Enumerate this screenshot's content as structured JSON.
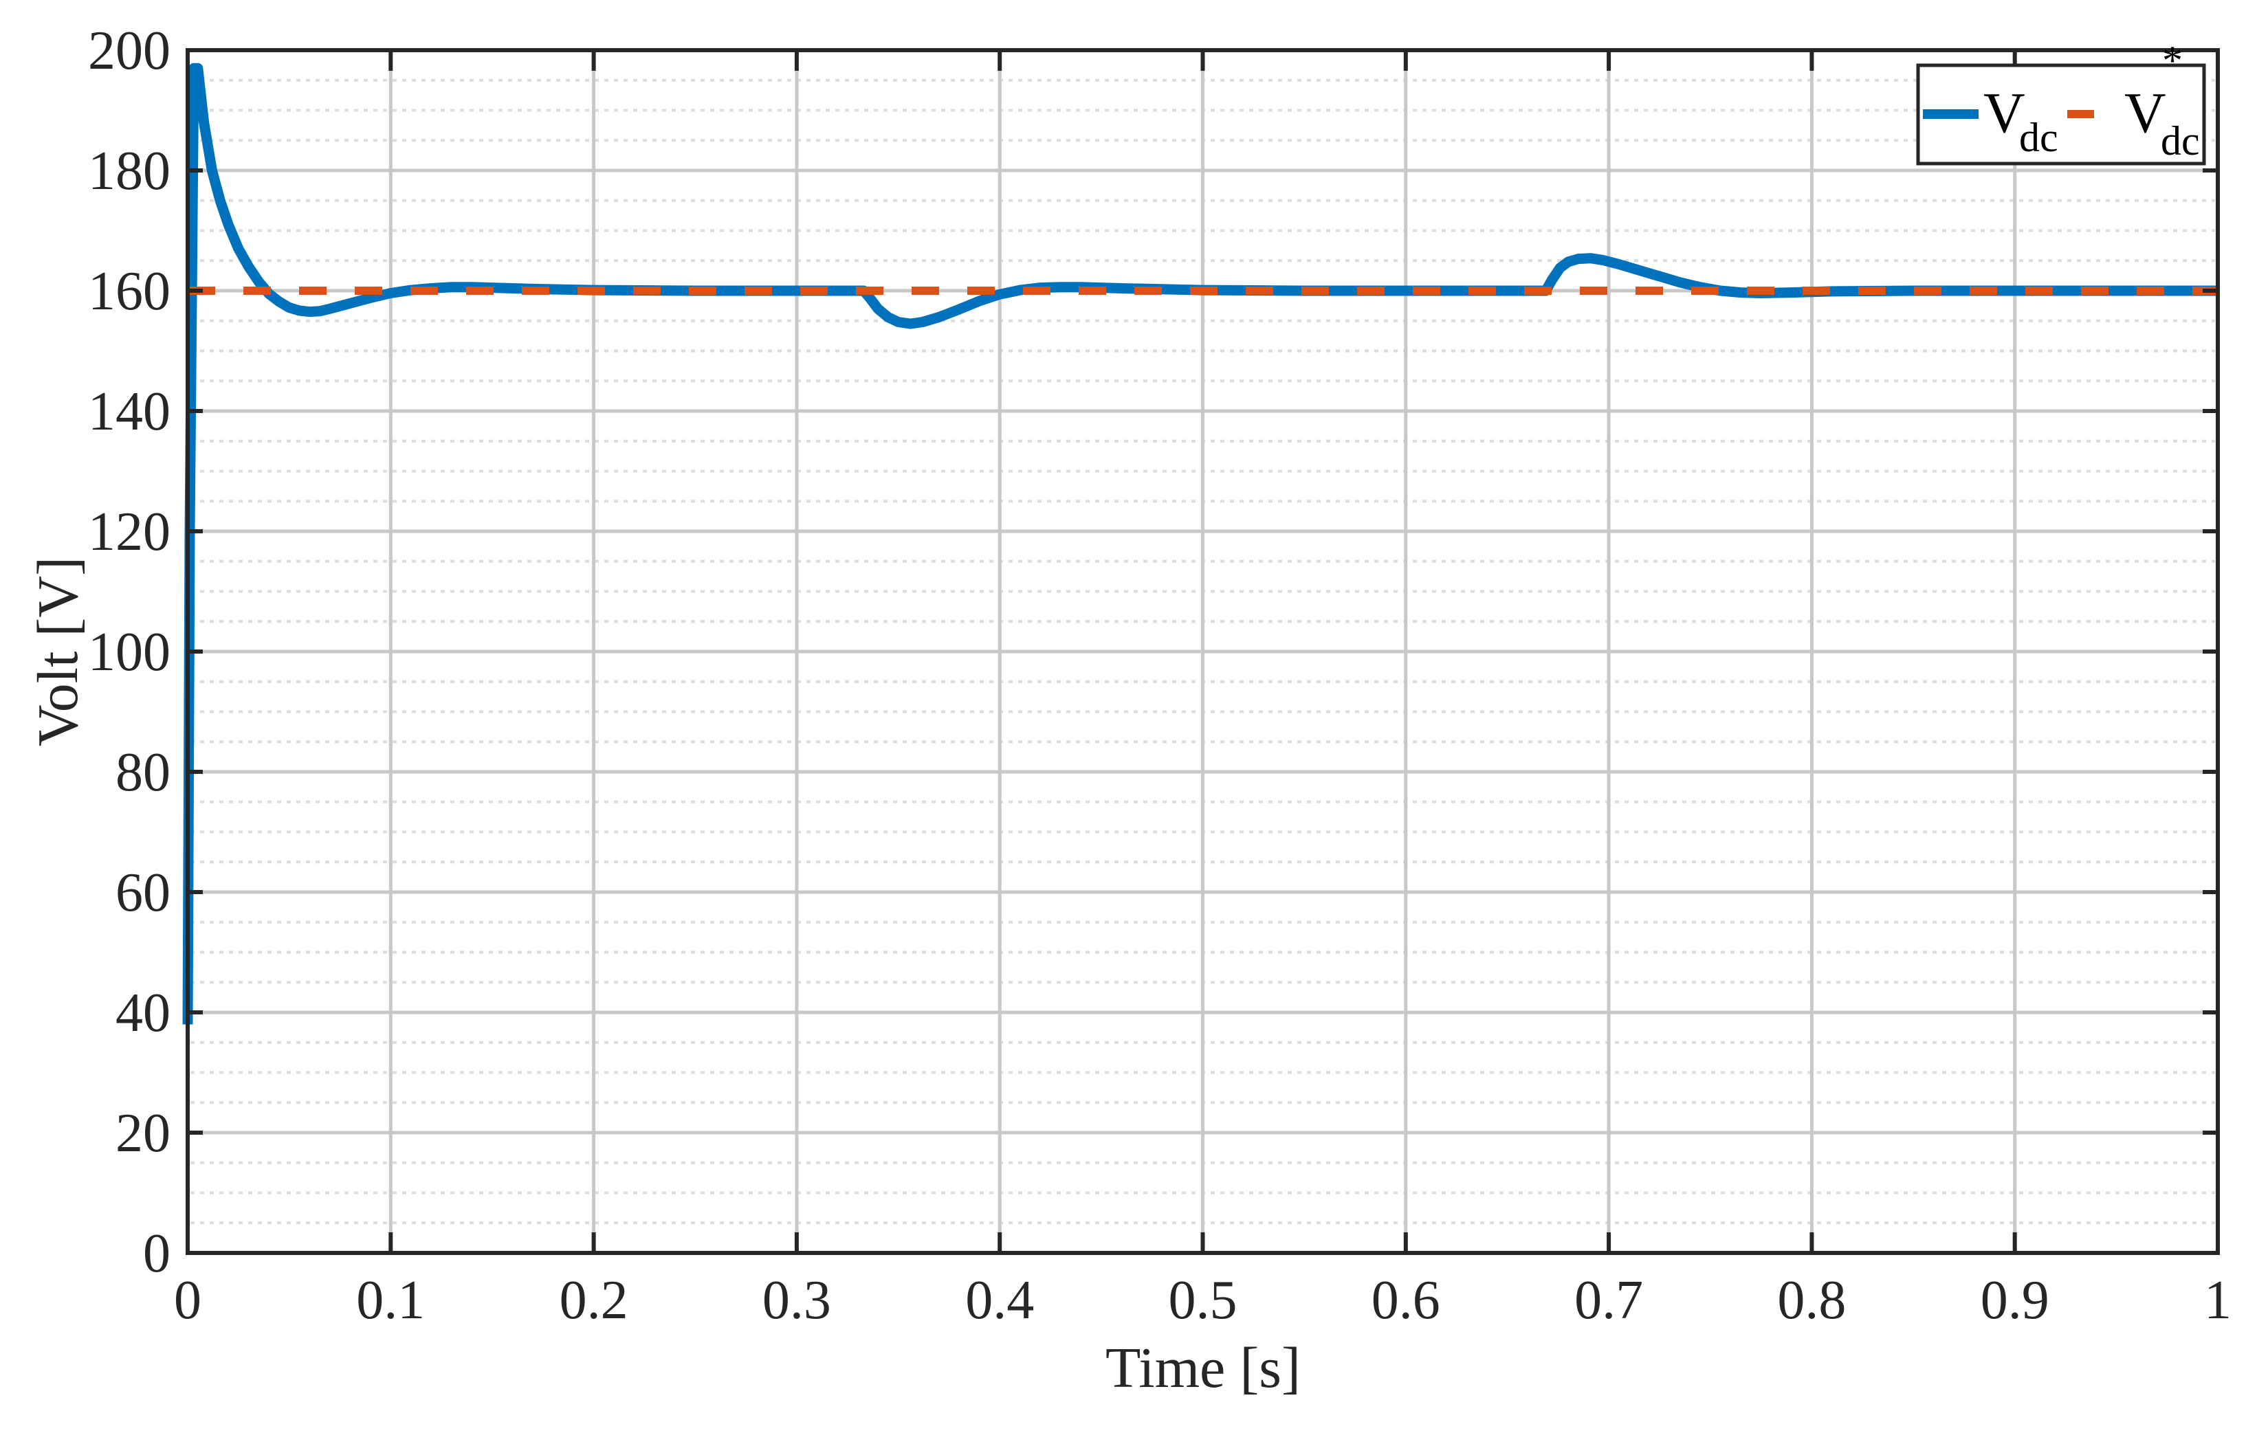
{
  "chart_data": {
    "type": "line",
    "title": "",
    "xlabel": "Time [s]",
    "ylabel": "Volt [V]",
    "xlim": [
      0,
      1
    ],
    "ylim": [
      0,
      200
    ],
    "xticks": [
      0,
      0.1,
      0.2,
      0.3,
      0.4,
      0.5,
      0.6,
      0.7,
      0.8,
      0.9,
      1
    ],
    "xtick_labels": [
      "0",
      "0.1",
      "0.2",
      "0.3",
      "0.4",
      "0.5",
      "0.6",
      "0.7",
      "0.8",
      "0.9",
      "1"
    ],
    "yticks": [
      0,
      20,
      40,
      60,
      80,
      100,
      120,
      140,
      160,
      180,
      200
    ],
    "ytick_labels": [
      "0",
      "20",
      "40",
      "60",
      "80",
      "100",
      "120",
      "140",
      "160",
      "180",
      "200"
    ],
    "minor_y_step": 5,
    "grid": true,
    "legend_position": "top-right",
    "series": [
      {
        "name": "V_dc",
        "legend_main": "V",
        "legend_sub": "dc",
        "legend_sup": "",
        "color": "#0072BD",
        "style": "solid",
        "x": [
          0,
          0.001,
          0.003,
          0.005,
          0.008,
          0.012,
          0.016,
          0.02,
          0.025,
          0.03,
          0.035,
          0.04,
          0.045,
          0.05,
          0.055,
          0.06,
          0.065,
          0.07,
          0.08,
          0.09,
          0.1,
          0.11,
          0.12,
          0.13,
          0.14,
          0.15,
          0.17,
          0.2,
          0.25,
          0.3,
          0.333,
          0.336,
          0.34,
          0.345,
          0.35,
          0.356,
          0.362,
          0.37,
          0.38,
          0.39,
          0.4,
          0.41,
          0.42,
          0.43,
          0.44,
          0.46,
          0.5,
          0.55,
          0.6,
          0.65,
          0.669,
          0.672,
          0.676,
          0.68,
          0.685,
          0.691,
          0.697,
          0.705,
          0.715,
          0.725,
          0.735,
          0.745,
          0.755,
          0.765,
          0.775,
          0.79,
          0.81,
          0.85,
          0.9,
          0.95,
          1.0
        ],
        "y": [
          38,
          120,
          197,
          197,
          188,
          180,
          175,
          171,
          167,
          164,
          161.5,
          159.5,
          158.2,
          157.2,
          156.7,
          156.5,
          156.6,
          157,
          157.9,
          158.8,
          159.6,
          160.1,
          160.4,
          160.6,
          160.6,
          160.5,
          160.3,
          160.1,
          160,
          160,
          160,
          158.8,
          157,
          155.6,
          154.8,
          154.5,
          154.8,
          155.6,
          156.9,
          158.3,
          159.4,
          160.1,
          160.5,
          160.6,
          160.6,
          160.4,
          160.1,
          160,
          160,
          160,
          160,
          161.8,
          163.8,
          164.8,
          165.3,
          165.4,
          165.1,
          164.4,
          163.4,
          162.4,
          161.4,
          160.6,
          160,
          159.7,
          159.6,
          159.7,
          159.9,
          160,
          160,
          160,
          160
        ]
      },
      {
        "name": "V_dc*",
        "legend_main": "V",
        "legend_sub": "dc",
        "legend_sup": "*",
        "color": "#D95319",
        "style": "dashed",
        "x": [
          0,
          1
        ],
        "y": [
          160,
          160
        ]
      }
    ]
  },
  "colors": {
    "axis": "#262626",
    "major_grid": "#c8c8c8",
    "minor_grid": "#dcdcdc",
    "background": "#ffffff"
  }
}
